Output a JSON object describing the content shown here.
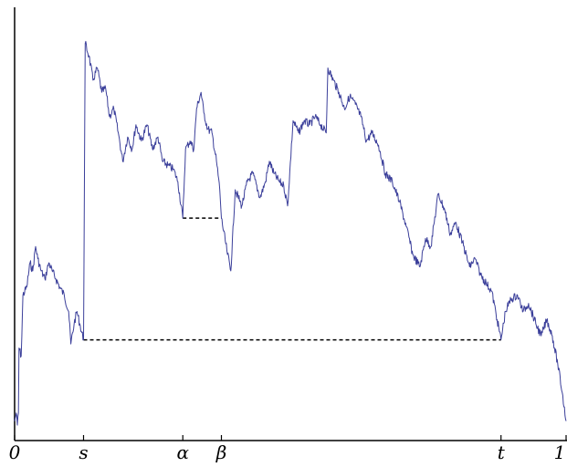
{
  "chart_data": {
    "type": "line",
    "title": "",
    "xlabel": "",
    "ylabel": "",
    "grid": false,
    "legend": "none",
    "xlim": [
      0,
      1
    ],
    "ylim": [
      0,
      1
    ],
    "x_tick_labels": [
      {
        "x": 0.0,
        "label": "0"
      },
      {
        "x": 0.125,
        "label": "s"
      },
      {
        "x": 0.305,
        "label": "α"
      },
      {
        "x": 0.375,
        "label": "β"
      },
      {
        "x": 0.882,
        "label": "t"
      },
      {
        "x": 1.0,
        "label": "1"
      }
    ],
    "series": [
      {
        "color": "#3b3f9a",
        "points": [
          [
            0.0,
            0.03
          ],
          [
            0.003,
            0.05
          ],
          [
            0.005,
            0.02
          ],
          [
            0.007,
            0.05
          ],
          [
            0.008,
            0.21
          ],
          [
            0.012,
            0.19
          ],
          [
            0.015,
            0.34
          ],
          [
            0.022,
            0.36
          ],
          [
            0.028,
            0.42
          ],
          [
            0.033,
            0.4
          ],
          [
            0.038,
            0.46
          ],
          [
            0.042,
            0.43
          ],
          [
            0.048,
            0.4
          ],
          [
            0.055,
            0.38
          ],
          [
            0.062,
            0.42
          ],
          [
            0.068,
            0.4
          ],
          [
            0.075,
            0.38
          ],
          [
            0.082,
            0.36
          ],
          [
            0.09,
            0.34
          ],
          [
            0.098,
            0.3
          ],
          [
            0.102,
            0.22
          ],
          [
            0.108,
            0.27
          ],
          [
            0.113,
            0.3
          ],
          [
            0.118,
            0.27
          ],
          [
            0.125,
            0.23
          ],
          [
            0.128,
            0.96
          ],
          [
            0.135,
            0.93
          ],
          [
            0.142,
            0.87
          ],
          [
            0.15,
            0.9
          ],
          [
            0.158,
            0.84
          ],
          [
            0.165,
            0.85
          ],
          [
            0.172,
            0.78
          ],
          [
            0.18,
            0.8
          ],
          [
            0.188,
            0.74
          ],
          [
            0.196,
            0.67
          ],
          [
            0.205,
            0.73
          ],
          [
            0.213,
            0.7
          ],
          [
            0.22,
            0.76
          ],
          [
            0.23,
            0.72
          ],
          [
            0.24,
            0.76
          ],
          [
            0.25,
            0.7
          ],
          [
            0.26,
            0.73
          ],
          [
            0.268,
            0.67
          ],
          [
            0.278,
            0.66
          ],
          [
            0.288,
            0.65
          ],
          [
            0.296,
            0.62
          ],
          [
            0.305,
            0.53
          ],
          [
            0.31,
            0.7
          ],
          [
            0.318,
            0.72
          ],
          [
            0.325,
            0.7
          ],
          [
            0.33,
            0.8
          ],
          [
            0.338,
            0.84
          ],
          [
            0.343,
            0.79
          ],
          [
            0.35,
            0.75
          ],
          [
            0.358,
            0.74
          ],
          [
            0.366,
            0.67
          ],
          [
            0.372,
            0.6
          ],
          [
            0.375,
            0.53
          ],
          [
            0.385,
            0.45
          ],
          [
            0.392,
            0.4
          ],
          [
            0.4,
            0.6
          ],
          [
            0.412,
            0.56
          ],
          [
            0.422,
            0.62
          ],
          [
            0.432,
            0.64
          ],
          [
            0.445,
            0.58
          ],
          [
            0.455,
            0.62
          ],
          [
            0.462,
            0.67
          ],
          [
            0.47,
            0.64
          ],
          [
            0.48,
            0.62
          ],
          [
            0.488,
            0.61
          ],
          [
            0.495,
            0.56
          ],
          [
            0.505,
            0.77
          ],
          [
            0.515,
            0.74
          ],
          [
            0.525,
            0.77
          ],
          [
            0.535,
            0.76
          ],
          [
            0.545,
            0.78
          ],
          [
            0.555,
            0.76
          ],
          [
            0.565,
            0.74
          ],
          [
            0.568,
            0.9
          ],
          [
            0.578,
            0.87
          ],
          [
            0.588,
            0.84
          ],
          [
            0.598,
            0.8
          ],
          [
            0.608,
            0.83
          ],
          [
            0.618,
            0.81
          ],
          [
            0.628,
            0.78
          ],
          [
            0.638,
            0.72
          ],
          [
            0.648,
            0.74
          ],
          [
            0.66,
            0.71
          ],
          [
            0.672,
            0.64
          ],
          [
            0.685,
            0.62
          ],
          [
            0.698,
            0.57
          ],
          [
            0.71,
            0.51
          ],
          [
            0.722,
            0.44
          ],
          [
            0.735,
            0.41
          ],
          [
            0.745,
            0.48
          ],
          [
            0.755,
            0.46
          ],
          [
            0.768,
            0.59
          ],
          [
            0.78,
            0.55
          ],
          [
            0.79,
            0.49
          ],
          [
            0.8,
            0.52
          ],
          [
            0.812,
            0.47
          ],
          [
            0.825,
            0.41
          ],
          [
            0.835,
            0.43
          ],
          [
            0.845,
            0.39
          ],
          [
            0.855,
            0.37
          ],
          [
            0.865,
            0.35
          ],
          [
            0.875,
            0.28
          ],
          [
            0.882,
            0.23
          ],
          [
            0.89,
            0.3
          ],
          [
            0.9,
            0.33
          ],
          [
            0.912,
            0.34
          ],
          [
            0.922,
            0.3
          ],
          [
            0.932,
            0.32
          ],
          [
            0.945,
            0.27
          ],
          [
            0.955,
            0.24
          ],
          [
            0.965,
            0.28
          ],
          [
            0.975,
            0.24
          ],
          [
            0.985,
            0.17
          ],
          [
            0.993,
            0.1
          ],
          [
            1.0,
            0.03
          ]
        ]
      }
    ],
    "dashed_segments": [
      {
        "x": [
          0.125,
          0.882
        ],
        "y": 0.23
      },
      {
        "x": [
          0.305,
          0.375
        ],
        "y": 0.53
      }
    ]
  }
}
